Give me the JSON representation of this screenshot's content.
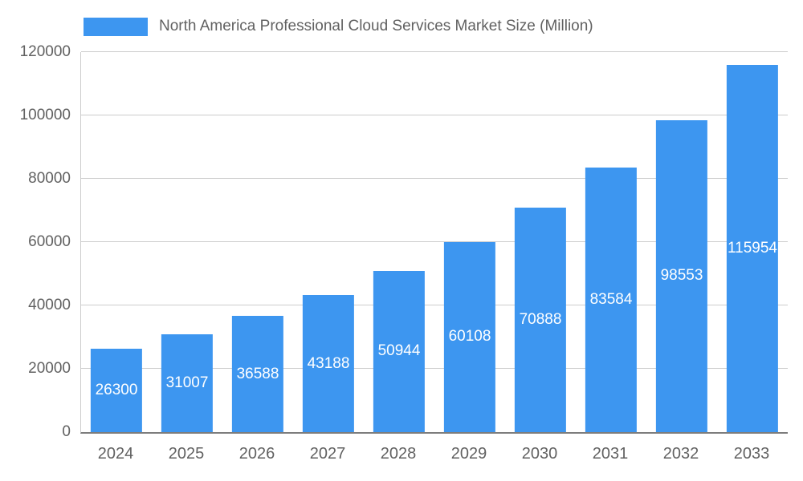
{
  "legend": {
    "swatch_color": "#3d96f0"
  },
  "chart_data": {
    "type": "bar",
    "title": "North America Professional Cloud Services Market Size (Million)",
    "categories": [
      "2024",
      "2025",
      "2026",
      "2027",
      "2028",
      "2029",
      "2030",
      "2031",
      "2032",
      "2033"
    ],
    "values": [
      26300,
      31007,
      36588,
      43188,
      50944,
      60108,
      70888,
      83584,
      98553,
      115954
    ],
    "xlabel": "",
    "ylabel": "",
    "ylim": [
      0,
      120000
    ],
    "yticks": [
      0,
      20000,
      40000,
      60000,
      80000,
      100000,
      120000
    ],
    "bar_color": "#3d96f0",
    "value_label_color": "#ffffff",
    "grid": true,
    "legend_position": "top"
  }
}
